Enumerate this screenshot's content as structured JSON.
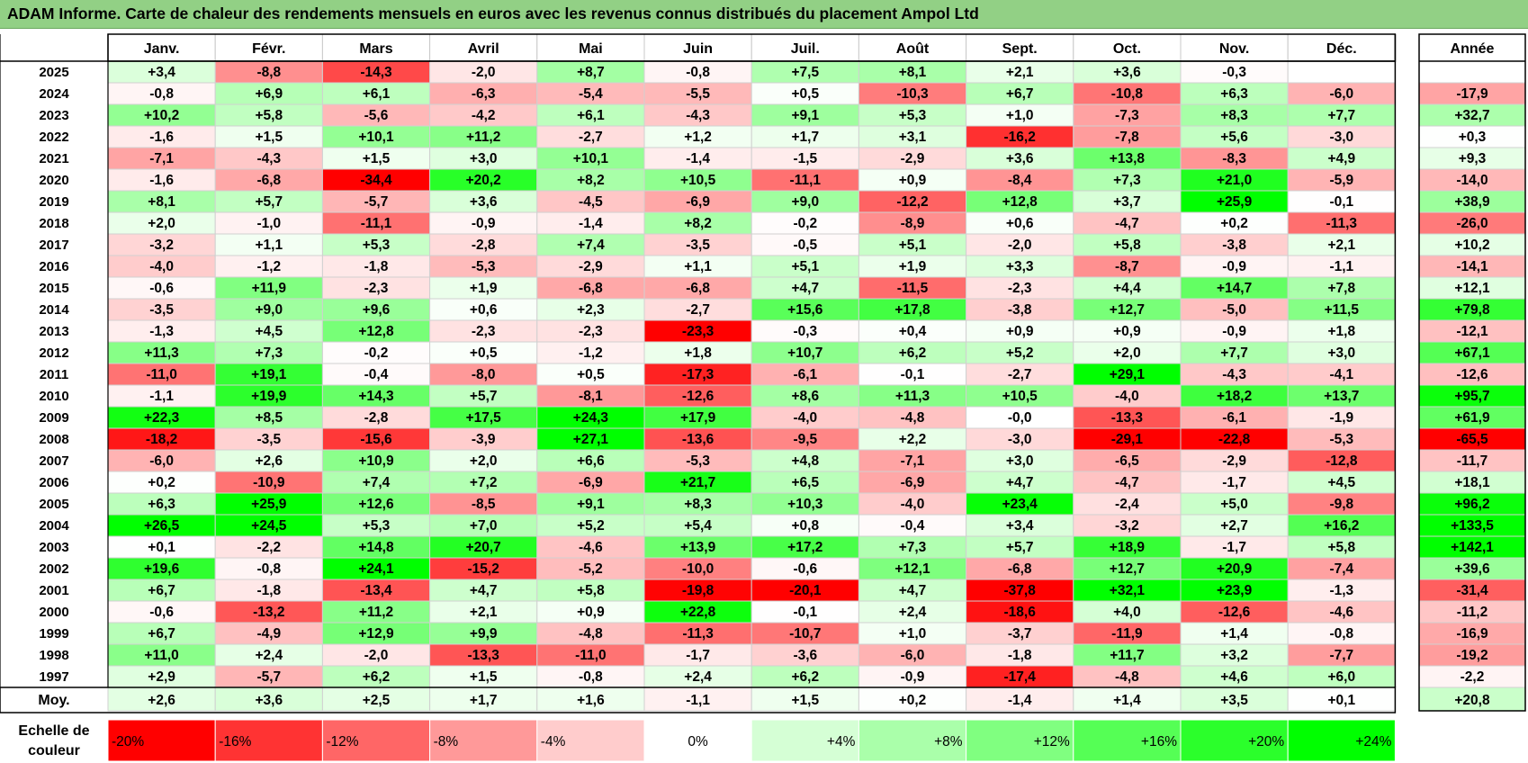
{
  "title": "ADAM Informe. Carte de chaleur des rendements mensuels en euros avec les revenus connus distribués du placement Ampol Ltd",
  "chart_data": {
    "type": "heatmap",
    "title": "ADAM Informe. Carte de chaleur des rendements mensuels en euros avec les revenus connus distribués du placement Ampol Ltd",
    "months": [
      "Janv.",
      "Févr.",
      "Mars",
      "Avril",
      "Mai",
      "Juin",
      "Juil.",
      "Août",
      "Sept.",
      "Oct.",
      "Nov.",
      "Déc."
    ],
    "year_column_label": "Année",
    "average_label": "Moy.",
    "rows": [
      {
        "year": "2025",
        "values": [
          3.4,
          -8.8,
          -14.3,
          -2.0,
          8.7,
          -0.8,
          7.5,
          8.1,
          2.1,
          3.6,
          -0.3,
          null
        ],
        "annual": null
      },
      {
        "year": "2024",
        "values": [
          -0.8,
          6.9,
          6.1,
          -6.3,
          -5.4,
          -5.5,
          0.5,
          -10.3,
          6.7,
          -10.8,
          6.3,
          -6.0
        ],
        "annual": -17.9
      },
      {
        "year": "2023",
        "values": [
          10.2,
          5.8,
          -5.6,
          -4.2,
          6.1,
          -4.3,
          9.1,
          5.3,
          1.0,
          -7.3,
          8.3,
          7.7
        ],
        "annual": 32.7
      },
      {
        "year": "2022",
        "values": [
          -1.6,
          1.5,
          10.1,
          11.2,
          -2.7,
          1.2,
          1.7,
          3.1,
          -16.2,
          -7.8,
          5.6,
          -3.0
        ],
        "annual": 0.3
      },
      {
        "year": "2021",
        "values": [
          -7.1,
          -4.3,
          1.5,
          3.0,
          10.1,
          -1.4,
          -1.5,
          -2.9,
          3.6,
          13.8,
          -8.3,
          4.9
        ],
        "annual": 9.3
      },
      {
        "year": "2020",
        "values": [
          -1.6,
          -6.8,
          -34.4,
          20.2,
          8.2,
          10.5,
          -11.1,
          0.9,
          -8.4,
          7.3,
          21.0,
          -5.9
        ],
        "annual": -14.0
      },
      {
        "year": "2019",
        "values": [
          8.1,
          5.7,
          -5.7,
          3.6,
          -4.5,
          -6.9,
          9.0,
          -12.2,
          12.8,
          3.7,
          25.9,
          -0.1
        ],
        "annual": 38.9
      },
      {
        "year": "2018",
        "values": [
          2.0,
          -1.0,
          -11.1,
          -0.9,
          -1.4,
          8.2,
          -0.2,
          -8.9,
          0.6,
          -4.7,
          0.2,
          -11.3
        ],
        "annual": -26.0
      },
      {
        "year": "2017",
        "values": [
          -3.2,
          1.1,
          5.3,
          -2.8,
          7.4,
          -3.5,
          -0.5,
          5.1,
          -2.0,
          5.8,
          -3.8,
          2.1
        ],
        "annual": 10.2
      },
      {
        "year": "2016",
        "values": [
          -4.0,
          -1.2,
          -1.8,
          -5.3,
          -2.9,
          1.1,
          5.1,
          1.9,
          3.3,
          -8.7,
          -0.9,
          -1.1
        ],
        "annual": -14.1
      },
      {
        "year": "2015",
        "values": [
          -0.6,
          11.9,
          -2.3,
          1.9,
          -6.8,
          -6.8,
          4.7,
          -11.5,
          -2.3,
          4.4,
          14.7,
          7.8
        ],
        "annual": 12.1
      },
      {
        "year": "2014",
        "values": [
          -3.5,
          9.0,
          9.6,
          0.6,
          2.3,
          -2.7,
          15.6,
          17.8,
          -3.8,
          12.7,
          -5.0,
          11.5
        ],
        "annual": 79.8
      },
      {
        "year": "2013",
        "values": [
          -1.3,
          4.5,
          12.8,
          -2.3,
          -2.3,
          -23.3,
          -0.3,
          0.4,
          0.9,
          0.9,
          -0.9,
          1.8
        ],
        "annual": -12.1
      },
      {
        "year": "2012",
        "values": [
          11.3,
          7.3,
          -0.2,
          0.5,
          -1.2,
          1.8,
          10.7,
          6.2,
          5.2,
          2.0,
          7.7,
          3.0
        ],
        "annual": 67.1
      },
      {
        "year": "2011",
        "values": [
          -11.0,
          19.1,
          -0.4,
          -8.0,
          0.5,
          -17.3,
          -6.1,
          -0.1,
          -2.7,
          29.1,
          -4.3,
          -4.1
        ],
        "annual": -12.6
      },
      {
        "year": "2010",
        "values": [
          -1.1,
          19.9,
          14.3,
          5.7,
          -8.1,
          -12.6,
          8.6,
          11.3,
          10.5,
          -4.0,
          18.2,
          13.7
        ],
        "annual": 95.7
      },
      {
        "year": "2009",
        "values": [
          22.3,
          8.5,
          -2.8,
          17.5,
          24.3,
          17.9,
          -4.0,
          -4.8,
          "-0,0",
          -13.3,
          -6.1,
          -1.9
        ],
        "annual": 61.9
      },
      {
        "year": "2008",
        "values": [
          -18.2,
          -3.5,
          -15.6,
          -3.9,
          27.1,
          -13.6,
          -9.5,
          2.2,
          -3.0,
          -29.1,
          -22.8,
          -5.3
        ],
        "annual": -65.5
      },
      {
        "year": "2007",
        "values": [
          -6.0,
          2.6,
          10.9,
          2.0,
          6.6,
          -5.3,
          4.8,
          -7.1,
          3.0,
          -6.5,
          -2.9,
          -12.8
        ],
        "annual": -11.7
      },
      {
        "year": "2006",
        "values": [
          0.2,
          -10.9,
          7.4,
          7.2,
          -6.9,
          21.7,
          6.5,
          -6.9,
          4.7,
          -4.7,
          -1.7,
          4.5
        ],
        "annual": 18.1
      },
      {
        "year": "2005",
        "values": [
          6.3,
          25.9,
          12.6,
          -8.5,
          9.1,
          8.3,
          10.3,
          -4.0,
          23.4,
          -2.4,
          5.0,
          -9.8
        ],
        "annual": 96.2
      },
      {
        "year": "2004",
        "values": [
          26.5,
          24.5,
          5.3,
          7.0,
          5.2,
          5.4,
          0.8,
          -0.4,
          3.4,
          -3.2,
          2.7,
          16.2
        ],
        "annual": 133.5
      },
      {
        "year": "2003",
        "values": [
          0.1,
          -2.2,
          14.8,
          20.7,
          -4.6,
          13.9,
          17.2,
          7.3,
          5.7,
          18.9,
          -1.7,
          5.8
        ],
        "annual": 142.1
      },
      {
        "year": "2002",
        "values": [
          19.6,
          -0.8,
          24.1,
          -15.2,
          -5.2,
          -10.0,
          -0.6,
          12.1,
          -6.8,
          12.7,
          20.9,
          -7.4
        ],
        "annual": 39.6
      },
      {
        "year": "2001",
        "values": [
          6.7,
          -1.8,
          -13.4,
          4.7,
          5.8,
          -19.8,
          -20.1,
          4.7,
          -37.8,
          32.1,
          23.9,
          -1.3
        ],
        "annual": -31.4
      },
      {
        "year": "2000",
        "values": [
          -0.6,
          -13.2,
          11.2,
          2.1,
          0.9,
          22.8,
          -0.1,
          2.4,
          -18.6,
          4.0,
          -12.6,
          -4.6
        ],
        "annual": -11.2
      },
      {
        "year": "1999",
        "values": [
          6.7,
          -4.9,
          12.9,
          9.9,
          -4.8,
          -11.3,
          -10.7,
          1.0,
          -3.7,
          -11.9,
          1.4,
          -0.8
        ],
        "annual": -16.9
      },
      {
        "year": "1998",
        "values": [
          11.0,
          2.4,
          -2.0,
          -13.3,
          -11.0,
          -1.7,
          -3.6,
          -6.0,
          -1.8,
          11.7,
          3.2,
          -7.7
        ],
        "annual": -19.2
      },
      {
        "year": "1997",
        "values": [
          2.9,
          -5.7,
          6.2,
          1.5,
          -0.8,
          2.4,
          6.2,
          -0.9,
          -17.4,
          -4.8,
          4.6,
          6.0
        ],
        "annual": -2.2
      }
    ],
    "averages": [
      2.6,
      3.6,
      2.5,
      1.7,
      1.6,
      -1.1,
      1.5,
      0.2,
      -1.4,
      1.4,
      3.5,
      0.1
    ],
    "average_annual": 20.8,
    "scale": {
      "label_line1": "Echelle de",
      "label_line2": "couleur",
      "stops": [
        "-20%",
        "-16%",
        "-12%",
        "-8%",
        "-4%",
        "0%",
        "+4%",
        "+8%",
        "+12%",
        "+16%",
        "+20%",
        "+24%"
      ],
      "values": [
        -20,
        -16,
        -12,
        -8,
        -4,
        0,
        4,
        8,
        12,
        16,
        20,
        24
      ]
    },
    "colors": {
      "neg_max": "#ff0000",
      "neutral": "#ffffff",
      "pos_max": "#00ff00",
      "header_bg": "#92d085"
    }
  }
}
